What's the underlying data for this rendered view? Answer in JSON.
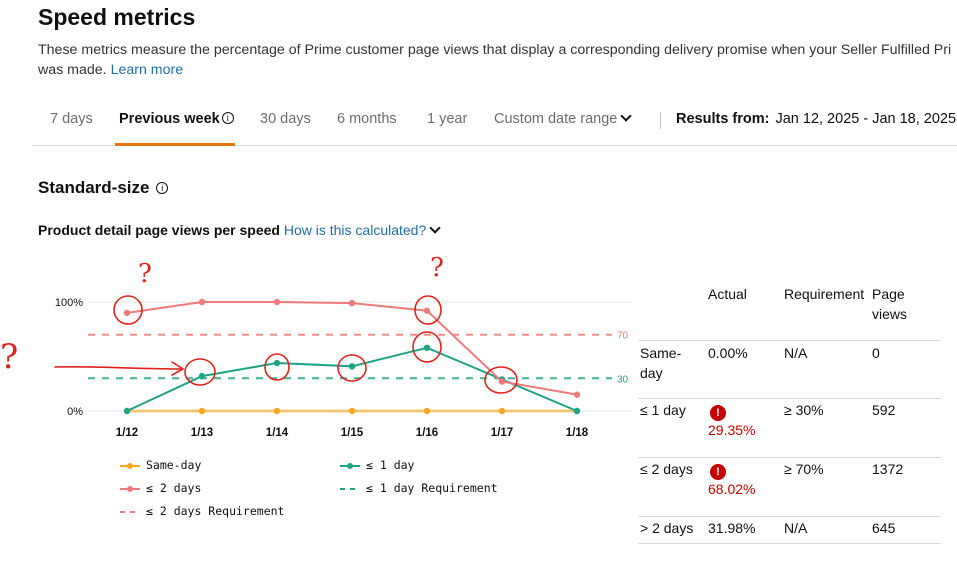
{
  "header": {
    "title": "Speed metrics",
    "description_line1": "These metrics measure the percentage of Prime customer page views that display a corresponding delivery promise when your Seller Fulfilled Pri",
    "description_line2": "was made.",
    "learn_more": "Learn more"
  },
  "tabs": [
    {
      "label": "7 days"
    },
    {
      "label": "Previous week"
    },
    {
      "label": "30 days"
    },
    {
      "label": "6 months"
    },
    {
      "label": "1 year"
    },
    {
      "label": "Custom date range"
    }
  ],
  "results": {
    "label": "Results from:",
    "range": "Jan 12, 2025 - Jan 18, 2025"
  },
  "section": {
    "title": "Standard-size",
    "subtitle": "Product detail page views per speed",
    "how_link": "How is this calculated?"
  },
  "colors": {
    "same_day": "#f5a623",
    "one_day": "#1fa386",
    "two_days": "#ee7b7b",
    "tab_accent": "#e47911",
    "error": "#c40000",
    "annotation": "#e0231c"
  },
  "chart_data": {
    "type": "line",
    "categories": [
      "1/12",
      "1/13",
      "1/14",
      "1/15",
      "1/16",
      "1/17",
      "1/18"
    ],
    "ylim": [
      0,
      100
    ],
    "y_ticks": [
      "0%",
      "100%"
    ],
    "series": [
      {
        "name": "Same-day",
        "values": [
          0,
          0,
          0,
          0,
          0,
          0,
          0
        ]
      },
      {
        "name": "≤ 1 day",
        "values": [
          0,
          32,
          44,
          41,
          58,
          29,
          0
        ]
      },
      {
        "name": "≤ 2 days",
        "values": [
          90,
          100,
          100,
          99,
          92,
          27,
          15
        ]
      }
    ],
    "thresholds": [
      {
        "name": "≤ 1 day Requirement",
        "value": 30,
        "label": "30"
      },
      {
        "name": "≤ 2 days Requirement",
        "value": 70,
        "label": "70"
      }
    ],
    "legend": [
      "Same-day",
      "≤ 1 day",
      "≤ 2 days",
      "≤ 1 day Requirement",
      "≤ 2 days Requirement"
    ]
  },
  "table": {
    "headers": [
      "Actual",
      "Requirement",
      "Page views"
    ],
    "rows": [
      {
        "label": "Same-day",
        "actual": "0.00%",
        "requirement": "N/A",
        "views": "0",
        "error": false
      },
      {
        "label": "≤ 1 day",
        "actual": "29.35%",
        "requirement": "≥ 30%",
        "views": "592",
        "error": true
      },
      {
        "label": "≤ 2 days",
        "actual": "68.02%",
        "requirement": "≥ 70%",
        "views": "1372",
        "error": true
      },
      {
        "label": "> 2 days",
        "actual": "31.98%",
        "requirement": "N/A",
        "views": "645",
        "error": false
      }
    ]
  },
  "annotations": {
    "question_mark": "?",
    "error_mark": "!"
  }
}
